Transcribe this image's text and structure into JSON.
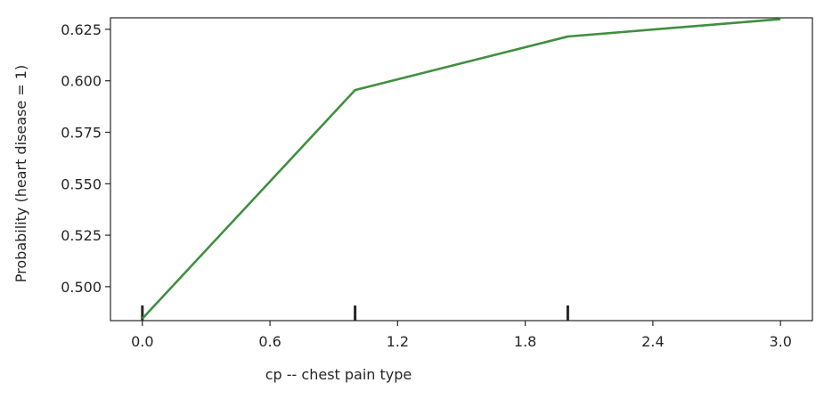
{
  "chart_data": {
    "type": "line",
    "xlabel": "cp -- chest pain type",
    "ylabel": "Probability (heart disease = 1)",
    "xlim": [
      -0.15,
      3.15
    ],
    "ylim": [
      0.4835,
      0.6306
    ],
    "x_ticks": [
      "0.0",
      "0.6",
      "1.2",
      "1.8",
      "2.4",
      "3.0"
    ],
    "y_ticks": [
      "0.500",
      "0.525",
      "0.550",
      "0.575",
      "0.600",
      "0.625"
    ],
    "rug_x": [
      0,
      1,
      2
    ],
    "grid": false,
    "series": [
      {
        "color": "#3f8f3f",
        "x": [
          0,
          1,
          2,
          3
        ],
        "y": [
          0.4845,
          0.5955,
          0.6215,
          0.63
        ]
      }
    ]
  }
}
